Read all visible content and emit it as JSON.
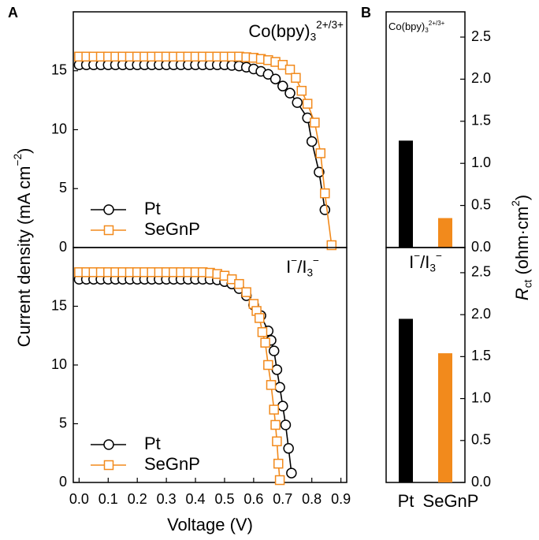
{
  "panel_labels": [
    "A",
    "B"
  ],
  "chart_data": [
    {
      "type": "line",
      "annotation": [
        {
          "text": "Co(bpy)"
        },
        {
          "sub": "3"
        },
        {
          "sup": "2+/3+"
        }
      ],
      "ylabel": [
        {
          "text": "Current density (mA cm"
        },
        {
          "sup": "−2"
        },
        {
          "text": ")"
        }
      ],
      "xlim": [
        -0.02,
        0.92
      ],
      "ylim": [
        0,
        20
      ],
      "yticks": [
        0,
        5,
        10,
        15
      ],
      "legend": "lower left",
      "series": [
        {
          "name": "Pt",
          "color": "#000000",
          "marker": "circle",
          "x": [
            0,
            0.025,
            0.05,
            0.075,
            0.1,
            0.125,
            0.15,
            0.175,
            0.2,
            0.225,
            0.25,
            0.275,
            0.3,
            0.325,
            0.35,
            0.375,
            0.4,
            0.425,
            0.45,
            0.475,
            0.5,
            0.525,
            0.55,
            0.575,
            0.6,
            0.625,
            0.65,
            0.675,
            0.7,
            0.725,
            0.75,
            0.785,
            0.8,
            0.825,
            0.845
          ],
          "values": [
            15.5,
            15.5,
            15.5,
            15.5,
            15.5,
            15.5,
            15.5,
            15.5,
            15.5,
            15.5,
            15.5,
            15.5,
            15.5,
            15.5,
            15.5,
            15.5,
            15.5,
            15.5,
            15.5,
            15.5,
            15.5,
            15.45,
            15.4,
            15.3,
            15.15,
            14.95,
            14.7,
            14.3,
            13.7,
            13.1,
            12.3,
            11.0,
            9.0,
            6.4,
            3.2
          ]
        },
        {
          "name": "SeGnP",
          "color": "#f28a1c",
          "marker": "square",
          "x": [
            0,
            0.025,
            0.05,
            0.075,
            0.1,
            0.125,
            0.15,
            0.175,
            0.2,
            0.225,
            0.25,
            0.275,
            0.3,
            0.325,
            0.35,
            0.375,
            0.4,
            0.425,
            0.45,
            0.475,
            0.5,
            0.525,
            0.55,
            0.575,
            0.6,
            0.625,
            0.65,
            0.675,
            0.7,
            0.725,
            0.745,
            0.765,
            0.785,
            0.81,
            0.83,
            0.845,
            0.868
          ],
          "values": [
            16.2,
            16.2,
            16.2,
            16.2,
            16.2,
            16.2,
            16.2,
            16.2,
            16.2,
            16.2,
            16.2,
            16.2,
            16.2,
            16.2,
            16.2,
            16.2,
            16.2,
            16.2,
            16.2,
            16.2,
            16.2,
            16.2,
            16.2,
            16.15,
            16.1,
            16.0,
            15.9,
            15.75,
            15.5,
            15.1,
            14.4,
            13.3,
            12.2,
            10.6,
            8.0,
            4.6,
            0.2
          ]
        }
      ]
    },
    {
      "type": "line",
      "annotation": [
        {
          "text": "I"
        },
        {
          "sup": "−"
        },
        {
          "text": "/I"
        },
        {
          "sub": "3"
        },
        {
          "sup": "−"
        }
      ],
      "xlabel": "Voltage (V)",
      "xlim": [
        -0.02,
        0.92
      ],
      "ylim": [
        0,
        20
      ],
      "yticks": [
        0,
        5,
        10,
        15
      ],
      "xticks": [
        {
          "value": 0,
          "label": "0.0"
        },
        0.1,
        0.2,
        0.3,
        0.4,
        0.5,
        0.6,
        0.7,
        0.8,
        0.9
      ],
      "legend": "lower left",
      "series": [
        {
          "name": "Pt",
          "color": "#000000",
          "marker": "circle",
          "x": [
            0,
            0.025,
            0.05,
            0.075,
            0.1,
            0.125,
            0.15,
            0.175,
            0.2,
            0.225,
            0.25,
            0.275,
            0.3,
            0.325,
            0.35,
            0.375,
            0.4,
            0.425,
            0.45,
            0.475,
            0.5,
            0.525,
            0.55,
            0.575,
            0.6,
            0.625,
            0.65,
            0.66,
            0.67,
            0.68,
            0.69,
            0.7,
            0.71,
            0.72,
            0.73
          ],
          "values": [
            17.3,
            17.3,
            17.3,
            17.3,
            17.3,
            17.3,
            17.3,
            17.3,
            17.3,
            17.3,
            17.3,
            17.3,
            17.3,
            17.3,
            17.3,
            17.3,
            17.3,
            17.3,
            17.3,
            17.25,
            17.1,
            16.9,
            16.5,
            15.9,
            15.1,
            14.2,
            12.9,
            12.1,
            11.2,
            9.6,
            8.1,
            6.5,
            4.9,
            2.9,
            0.8
          ]
        },
        {
          "name": "SeGnP",
          "color": "#f28a1c",
          "marker": "square",
          "x": [
            0,
            0.025,
            0.05,
            0.075,
            0.1,
            0.125,
            0.15,
            0.175,
            0.2,
            0.225,
            0.25,
            0.275,
            0.3,
            0.325,
            0.35,
            0.375,
            0.4,
            0.425,
            0.45,
            0.475,
            0.5,
            0.525,
            0.55,
            0.575,
            0.6,
            0.61,
            0.62,
            0.63,
            0.64,
            0.65,
            0.66,
            0.67,
            0.675,
            0.68,
            0.685,
            0.69
          ],
          "values": [
            17.9,
            17.9,
            17.9,
            17.9,
            17.9,
            17.9,
            17.9,
            17.9,
            17.9,
            17.9,
            17.9,
            17.9,
            17.9,
            17.9,
            17.9,
            17.9,
            17.9,
            17.9,
            17.85,
            17.75,
            17.6,
            17.3,
            16.9,
            16.2,
            15.2,
            14.6,
            14.0,
            12.8,
            11.9,
            10.0,
            8.3,
            6.2,
            4.9,
            3.5,
            1.6,
            0.2
          ]
        }
      ]
    },
    {
      "type": "bar",
      "annotation": [
        {
          "text": "Co(bpy)"
        },
        {
          "sub": "3"
        },
        {
          "sup": "2+/3+"
        }
      ],
      "ylabel": [
        {
          "italic": "R"
        },
        {
          "sub": "ct"
        },
        {
          "text": " (ohm·cm"
        },
        {
          "sup": "2"
        },
        {
          "text": ")"
        }
      ],
      "categories": [
        null,
        null
      ],
      "values": [
        1.27,
        0.35
      ],
      "colors": [
        "#000000",
        "#f28a1c"
      ],
      "ylim": [
        0,
        2.8
      ],
      "yticks": [
        {
          "value": 0,
          "label": "0.0"
        },
        0.5,
        {
          "value": 1,
          "label": "1.0"
        },
        1.5,
        {
          "value": 2,
          "label": "2.0"
        },
        2.5
      ]
    },
    {
      "type": "bar",
      "annotation": [
        {
          "text": "I"
        },
        {
          "sup": "−"
        },
        {
          "text": "/I"
        },
        {
          "sub": "3"
        },
        {
          "sup": "−"
        }
      ],
      "categories": [
        "Pt",
        "SeGnP"
      ],
      "values": [
        1.95,
        1.54
      ],
      "colors": [
        "#000000",
        "#f28a1c"
      ],
      "ylim": [
        0,
        2.8
      ],
      "yticks": [
        {
          "value": 0,
          "label": "0.0"
        },
        0.5,
        {
          "value": 1,
          "label": "1.0"
        },
        1.5,
        {
          "value": 2,
          "label": "2.0"
        },
        2.5
      ]
    }
  ]
}
